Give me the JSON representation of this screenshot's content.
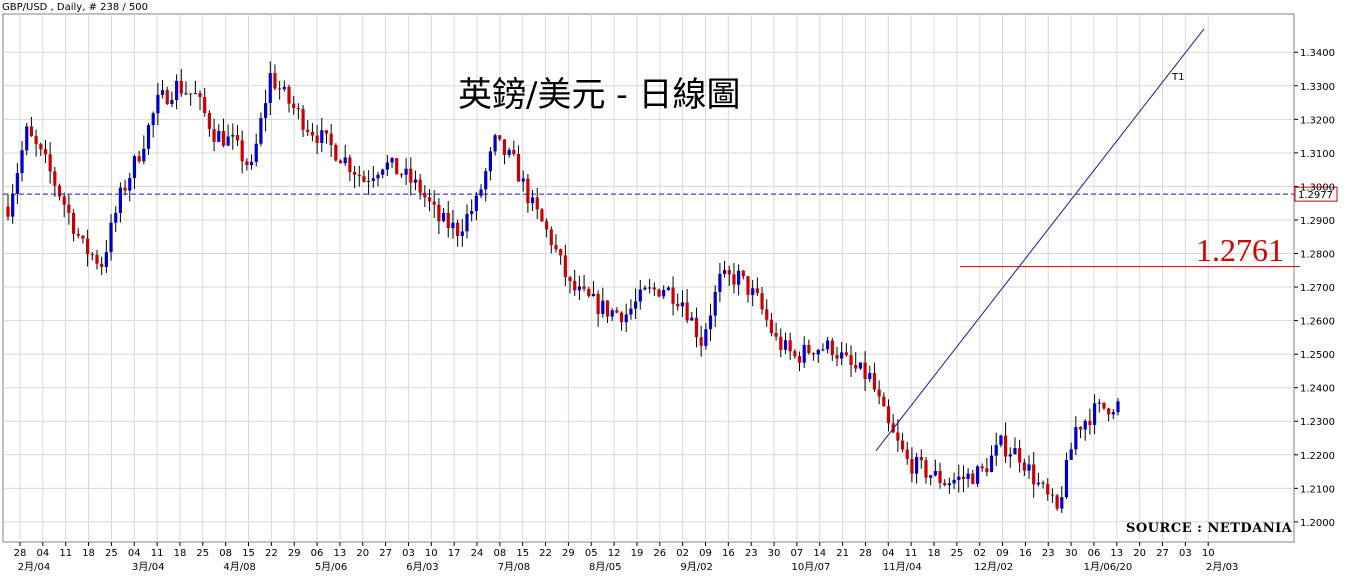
{
  "header_text": "GBP/USD , Daily, # 238 / 500",
  "title": "英鎊/美元 - 日線圖",
  "source": "SOURCE : NETDANIA",
  "colors": {
    "up": "#0000cc",
    "down": "#cc0000",
    "wick": "#000000",
    "grid": "#d8d8d8",
    "trendline": "#1a1aa0",
    "current_line": "#1a1aa0",
    "level_line": "#cc0000"
  },
  "chart_data": {
    "type": "candlestick",
    "ylim": [
      1.194,
      1.3514
    ],
    "y_ticks": [
      "1.3400",
      "1.3300",
      "1.3200",
      "1.3100",
      "1.3000",
      "1.2900",
      "1.2800",
      "1.2700",
      "1.2600",
      "1.2500",
      "1.2400",
      "1.2300",
      "1.2200",
      "1.2100",
      "1.2000"
    ],
    "y_tick_values": [
      1.34,
      1.33,
      1.32,
      1.31,
      1.3,
      1.29,
      1.28,
      1.27,
      1.26,
      1.25,
      1.24,
      1.23,
      1.22,
      1.21,
      1.2
    ],
    "x_day_labels": [
      "28",
      "04",
      "11",
      "18",
      "25",
      "04",
      "11",
      "18",
      "25",
      "08",
      "15",
      "22",
      "29",
      "06",
      "13",
      "20",
      "27",
      "03",
      "10",
      "17",
      "24",
      "08",
      "15",
      "22",
      "29",
      "05",
      "12",
      "19",
      "26",
      "02",
      "09",
      "16",
      "23",
      "30",
      "07",
      "14",
      "21",
      "28",
      "04",
      "11",
      "18",
      "25",
      "02",
      "09",
      "16",
      "23",
      "30",
      "06",
      "13",
      "20",
      "27",
      "03",
      "10"
    ],
    "x_month_labels": [
      {
        "label": "2月/04",
        "index": 0
      },
      {
        "label": "3月/04",
        "index": 5
      },
      {
        "label": "4月/08",
        "index": 9
      },
      {
        "label": "5月/06",
        "index": 13
      },
      {
        "label": "6月/03",
        "index": 17
      },
      {
        "label": "7月/08",
        "index": 21
      },
      {
        "label": "8月/05",
        "index": 25
      },
      {
        "label": "9月/02",
        "index": 29
      },
      {
        "label": "10月/07",
        "index": 34
      },
      {
        "label": "11月/04",
        "index": 38
      },
      {
        "label": "12月/02",
        "index": 42
      },
      {
        "label": "1月/06/20",
        "index": 47
      },
      {
        "label": "2月/03",
        "index": 52
      }
    ],
    "current_price": 1.2977,
    "current_price_label": "1.2977",
    "support_level": 1.2761,
    "support_label": "1.2761",
    "trendline": {
      "label": "T1",
      "from": [
        1.2212
      ],
      "to": [
        1.347
      ]
    },
    "candle_count": 238,
    "anchors": [
      [
        0,
        1.294
      ],
      [
        4,
        1.316
      ],
      [
        8,
        1.307
      ],
      [
        12,
        1.295
      ],
      [
        16,
        1.282
      ],
      [
        20,
        1.277
      ],
      [
        24,
        1.297
      ],
      [
        28,
        1.31
      ],
      [
        32,
        1.325
      ],
      [
        36,
        1.33
      ],
      [
        40,
        1.327
      ],
      [
        44,
        1.316
      ],
      [
        48,
        1.313
      ],
      [
        52,
        1.305
      ],
      [
        56,
        1.333
      ],
      [
        60,
        1.325
      ],
      [
        64,
        1.318
      ],
      [
        68,
        1.313
      ],
      [
        72,
        1.308
      ],
      [
        76,
        1.302
      ],
      [
        80,
        1.307
      ],
      [
        84,
        1.304
      ],
      [
        88,
        1.299
      ],
      [
        92,
        1.29
      ],
      [
        96,
        1.287
      ],
      [
        100,
        1.295
      ],
      [
        104,
        1.313
      ],
      [
        108,
        1.307
      ],
      [
        112,
        1.294
      ],
      [
        116,
        1.284
      ],
      [
        120,
        1.27
      ],
      [
        124,
        1.266
      ],
      [
        128,
        1.263
      ],
      [
        132,
        1.262
      ],
      [
        136,
        1.268
      ],
      [
        140,
        1.27
      ],
      [
        144,
        1.266
      ],
      [
        148,
        1.254
      ],
      [
        152,
        1.272
      ],
      [
        156,
        1.273
      ],
      [
        160,
        1.266
      ],
      [
        164,
        1.254
      ],
      [
        168,
        1.249
      ],
      [
        172,
        1.252
      ],
      [
        176,
        1.252
      ],
      [
        180,
        1.246
      ],
      [
        184,
        1.243
      ],
      [
        188,
        1.228
      ],
      [
        192,
        1.218
      ],
      [
        196,
        1.215
      ],
      [
        200,
        1.212
      ],
      [
        204,
        1.213
      ],
      [
        208,
        1.215
      ],
      [
        212,
        1.223
      ],
      [
        216,
        1.22
      ],
      [
        220,
        1.211
      ],
      [
        224,
        1.203
      ],
      [
        228,
        1.228
      ],
      [
        232,
        1.233
      ],
      [
        236,
        1.235
      ]
    ]
  }
}
